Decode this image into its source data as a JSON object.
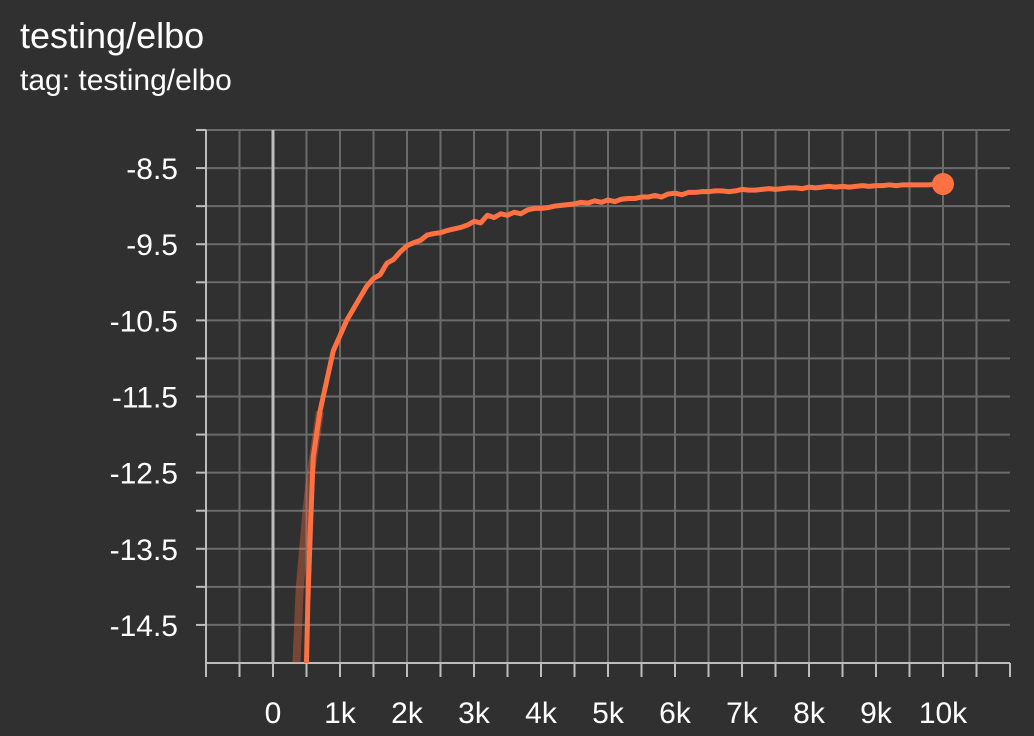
{
  "card": {
    "title": "testing/elbo",
    "tag_line": "tag: testing/elbo"
  },
  "colors": {
    "background": "#303030",
    "grid": "#6b6b6b",
    "axis": "#bdbdbd",
    "series": "#ff7043"
  },
  "chart_data": {
    "type": "line",
    "title": "testing/elbo",
    "xlabel": "",
    "ylabel": "",
    "xlim": [
      -1000,
      11000
    ],
    "ylim": [
      -15.0,
      -8.0
    ],
    "grid": true,
    "x_ticks": [
      0,
      1000,
      2000,
      3000,
      4000,
      5000,
      6000,
      7000,
      8000,
      9000,
      10000
    ],
    "x_tick_labels": [
      "0",
      "1k",
      "2k",
      "3k",
      "4k",
      "5k",
      "6k",
      "7k",
      "8k",
      "9k",
      "10k"
    ],
    "y_ticks": [
      -8.5,
      -9.5,
      -10.5,
      -11.5,
      -12.5,
      -13.5,
      -14.5
    ],
    "y_tick_labels": [
      "-8.5",
      "-9.5",
      "-10.5",
      "-11.5",
      "-12.5",
      "-13.5",
      "-14.5"
    ],
    "series": [
      {
        "x": [
          500,
          520,
          560,
          600,
          700,
          800,
          900,
          1000,
          1100,
          1200,
          1300,
          1400,
          1500,
          1600,
          1700,
          1800,
          1900,
          2000,
          2100,
          2200,
          2300,
          2400,
          2500,
          2600,
          2700,
          2800,
          2900,
          3000,
          3100,
          3200,
          3300,
          3400,
          3500,
          3600,
          3700,
          3800,
          3900,
          4000,
          4100,
          4200,
          4300,
          4400,
          4500,
          4600,
          4700,
          4800,
          4900,
          5000,
          5100,
          5200,
          5300,
          5400,
          5500,
          5600,
          5700,
          5800,
          5900,
          6000,
          6100,
          6200,
          6300,
          6400,
          6500,
          6600,
          6700,
          6800,
          6900,
          7000,
          7100,
          7200,
          7300,
          7400,
          7500,
          7600,
          7700,
          7800,
          7900,
          8000,
          8100,
          8200,
          8300,
          8400,
          8500,
          8600,
          8700,
          8800,
          8900,
          9000,
          9100,
          9200,
          9300,
          9400,
          9500,
          9600,
          9700,
          9800,
          9900,
          10000
        ],
        "y": [
          -15.0,
          -14.2,
          -13.2,
          -12.3,
          -11.7,
          -11.3,
          -10.9,
          -10.7,
          -10.5,
          -10.35,
          -10.2,
          -10.05,
          -9.95,
          -9.9,
          -9.75,
          -9.7,
          -9.6,
          -9.52,
          -9.48,
          -9.45,
          -9.38,
          -9.36,
          -9.35,
          -9.32,
          -9.3,
          -9.28,
          -9.25,
          -9.2,
          -9.22,
          -9.12,
          -9.15,
          -9.1,
          -9.12,
          -9.08,
          -9.1,
          -9.05,
          -9.03,
          -9.03,
          -9.02,
          -9.0,
          -8.99,
          -8.98,
          -8.97,
          -8.95,
          -8.96,
          -8.93,
          -8.95,
          -8.92,
          -8.94,
          -8.91,
          -8.9,
          -8.9,
          -8.88,
          -8.88,
          -8.86,
          -8.88,
          -8.84,
          -8.83,
          -8.85,
          -8.82,
          -8.82,
          -8.81,
          -8.81,
          -8.8,
          -8.8,
          -8.81,
          -8.8,
          -8.78,
          -8.79,
          -8.79,
          -8.78,
          -8.77,
          -8.78,
          -8.77,
          -8.76,
          -8.76,
          -8.77,
          -8.75,
          -8.76,
          -8.75,
          -8.74,
          -8.75,
          -8.74,
          -8.75,
          -8.74,
          -8.73,
          -8.74,
          -8.73,
          -8.73,
          -8.72,
          -8.73,
          -8.72,
          -8.72,
          -8.72,
          -8.72,
          -8.72,
          -8.71,
          -8.71
        ]
      }
    ],
    "faint_raw_series": {
      "x": [
        350,
        400,
        450,
        500,
        550,
        600,
        700
      ],
      "y": [
        -15.0,
        -14.0,
        -13.5,
        -13.0,
        -12.6,
        -12.3,
        -11.7
      ]
    }
  }
}
